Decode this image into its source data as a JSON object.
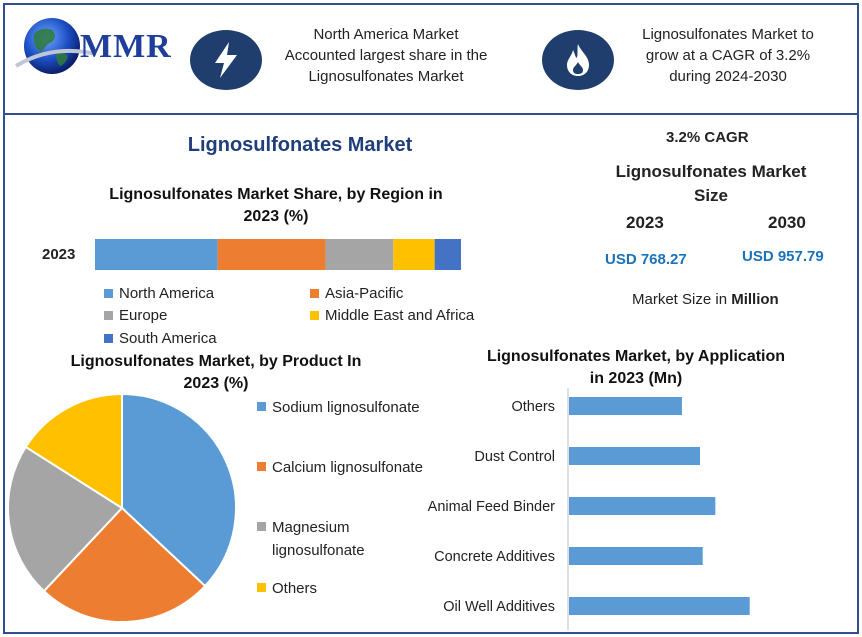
{
  "header": {
    "logo_text": "MMR",
    "callout_left": [
      "North America Market",
      "Accounted largest share in the",
      "Lignosulfonates Market"
    ],
    "callout_right": [
      "Lignosulfonates Market to",
      "grow at a CAGR of 3.2%",
      "during 2024-2030"
    ],
    "icon_left": "lightning-icon",
    "icon_right": "flame-icon"
  },
  "main_title": "Lignosulfonates Market",
  "market_size": {
    "cagr": "3.2% CAGR",
    "title": [
      "Lignosulfonates Market",
      "Size"
    ],
    "year_start": "2023",
    "year_end": "2030",
    "value_start": "USD 768.27",
    "value_end": "USD 957.79",
    "unit_prefix": "Market Size in ",
    "unit_bold": "Million"
  },
  "colors": {
    "blue": "#5b9bd5",
    "orange": "#ed7d31",
    "gray": "#a5a5a5",
    "yellow": "#ffc000",
    "dark_blue": "#4472c4",
    "navy": "#1f3e6e",
    "usd_blue": "#1c72b8"
  },
  "chart_data": [
    {
      "type": "bar",
      "orientation": "horizontal-stacked",
      "title": [
        "Lignosulfonates Market Share, by Region in",
        "2023 (%)"
      ],
      "categories": [
        "2023"
      ],
      "series": [
        {
          "name": "North America",
          "values": [
            33.5
          ],
          "color": "#5b9bd5"
        },
        {
          "name": "Asia-Pacific",
          "values": [
            29.5
          ],
          "color": "#ed7d31"
        },
        {
          "name": "Europe",
          "values": [
            18.5
          ],
          "color": "#a5a5a5"
        },
        {
          "name": "Middle East and Africa",
          "values": [
            11.3
          ],
          "color": "#ffc000"
        },
        {
          "name": "South America",
          "values": [
            7.2
          ],
          "color": "#4472c4"
        }
      ],
      "legend": "bottom"
    },
    {
      "type": "pie",
      "title": [
        "Lignosulfonates Market, by Product In",
        "2023 (%)"
      ],
      "slices": [
        {
          "name": "Sodium lignosulfonate",
          "value": 37,
          "color": "#5b9bd5"
        },
        {
          "name": "Calcium lignosulfonate",
          "value": 25,
          "color": "#ed7d31"
        },
        {
          "name": "Magnesium lignosulfonate",
          "label_lines": [
            "Magnesium",
            "lignosulfonate"
          ],
          "value": 22,
          "color": "#a5a5a5"
        },
        {
          "name": "Others",
          "value": 16,
          "color": "#ffc000"
        }
      ],
      "legend": "right"
    },
    {
      "type": "bar",
      "orientation": "horizontal",
      "title": [
        "Lignosulfonates Market, by Application",
        "in 2023 (Mn)"
      ],
      "categories": [
        "Others",
        "Dust Control",
        "Animal Feed Binder",
        "Concrete Additives",
        "Oil Well Additives"
      ],
      "values": [
        125,
        145,
        162,
        148,
        200
      ],
      "xlim": [
        0,
        290
      ],
      "color": "#5b9bd5"
    }
  ]
}
